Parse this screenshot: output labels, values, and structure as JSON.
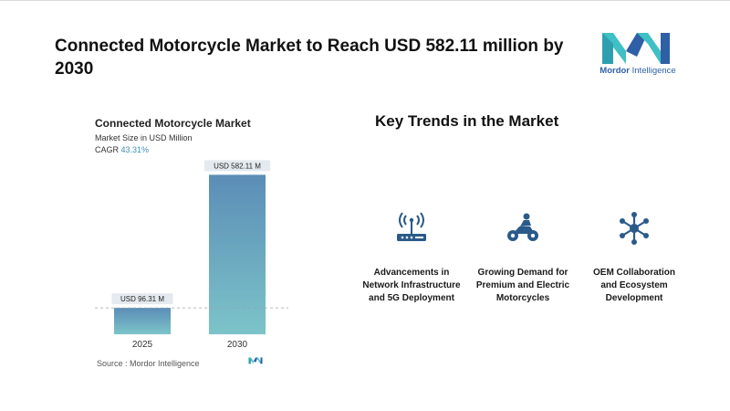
{
  "headline": "Connected Motorcycle Market to Reach USD 582.11 million by 2030",
  "brand": {
    "name_bold": "Mordor",
    "name_rest": " Intelligence",
    "colors": {
      "teal": "#3fc0c4",
      "blue": "#2f5fa7"
    }
  },
  "chart_data": {
    "type": "bar",
    "title": "Connected Motorcycle Market",
    "subtitle": "Market Size in USD Million",
    "cagr_label": "CAGR",
    "cagr_value": "43.31%",
    "categories": [
      "2025",
      "2030"
    ],
    "values": [
      96.31,
      582.11
    ],
    "data_labels": [
      "USD 96.31 M",
      "USD 582.11 M"
    ],
    "ylim": [
      0,
      600
    ],
    "grid": false,
    "colors": {
      "bar_top": "#5b8db6",
      "bar_bottom": "#7cc4c9",
      "label_bg": "#e4eaef"
    }
  },
  "source": "Source :  Mordor Intelligence",
  "trends": {
    "title": "Key Trends in the Market",
    "items": [
      {
        "icon": "router-signal-icon",
        "label": "Advancements in Network Infrastructure and 5G Deployment"
      },
      {
        "icon": "motorcycle-rider-icon",
        "label": "Growing Demand for Premium and Electric Motorcycles"
      },
      {
        "icon": "network-hub-icon",
        "label": "OEM Collaboration and Ecosystem Development"
      }
    ],
    "icon_color": "#2a5a8a"
  }
}
